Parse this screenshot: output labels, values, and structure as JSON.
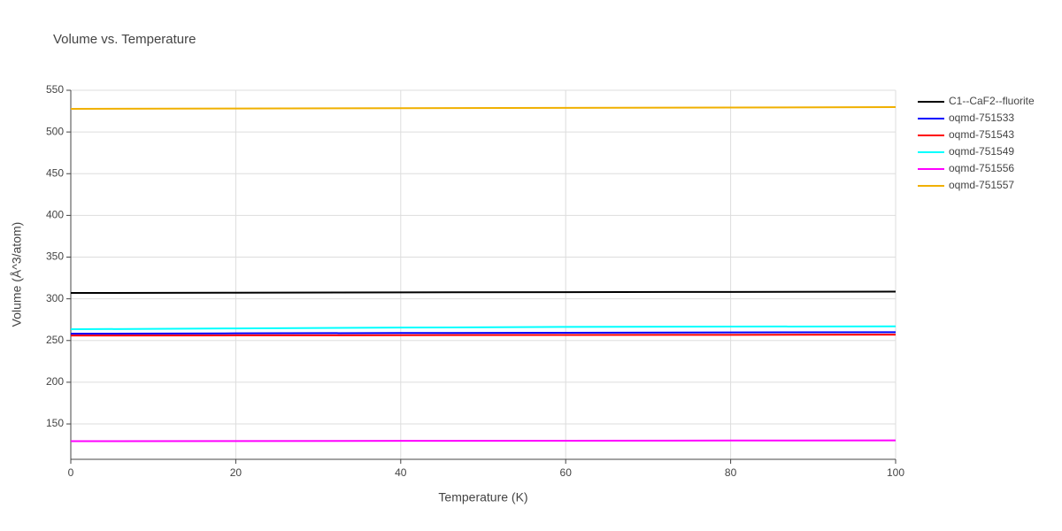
{
  "chart_data": {
    "type": "line",
    "title": "Volume vs. Temperature",
    "xlabel": "Temperature (K)",
    "ylabel": "Volume (Å^3/atom)",
    "x": [
      0,
      20,
      40,
      60,
      80,
      100
    ],
    "series": [
      {
        "name": "C1--CaF2--fluorite",
        "color": "#000000",
        "values": [
          307,
          307.3,
          307.7,
          308,
          308.3,
          308.7
        ]
      },
      {
        "name": "oqmd-751533",
        "color": "#0000ff",
        "values": [
          258.2,
          258.6,
          259,
          259.3,
          259.7,
          260
        ]
      },
      {
        "name": "oqmd-751543",
        "color": "#ff0000",
        "values": [
          256,
          256.2,
          256.4,
          256.6,
          256.8,
          257
        ]
      },
      {
        "name": "oqmd-751549",
        "color": "#00ffff",
        "values": [
          263.5,
          264.5,
          265.5,
          266.3,
          266.7,
          267
        ]
      },
      {
        "name": "oqmd-751556",
        "color": "#ff00ff",
        "values": [
          129.3,
          129.5,
          129.7,
          129.9,
          130.1,
          130.3
        ]
      },
      {
        "name": "oqmd-751557",
        "color": "#f0b000",
        "values": [
          527.7,
          528.1,
          528.5,
          528.9,
          529.3,
          529.8
        ]
      }
    ],
    "xlim": [
      0,
      100
    ],
    "xticks": [
      0,
      20,
      40,
      60,
      80,
      100
    ],
    "ylim": [
      107.6,
      550
    ],
    "yticks": [
      150,
      200,
      250,
      300,
      350,
      400,
      450,
      500,
      550
    ],
    "grid": true,
    "legend": "right"
  }
}
